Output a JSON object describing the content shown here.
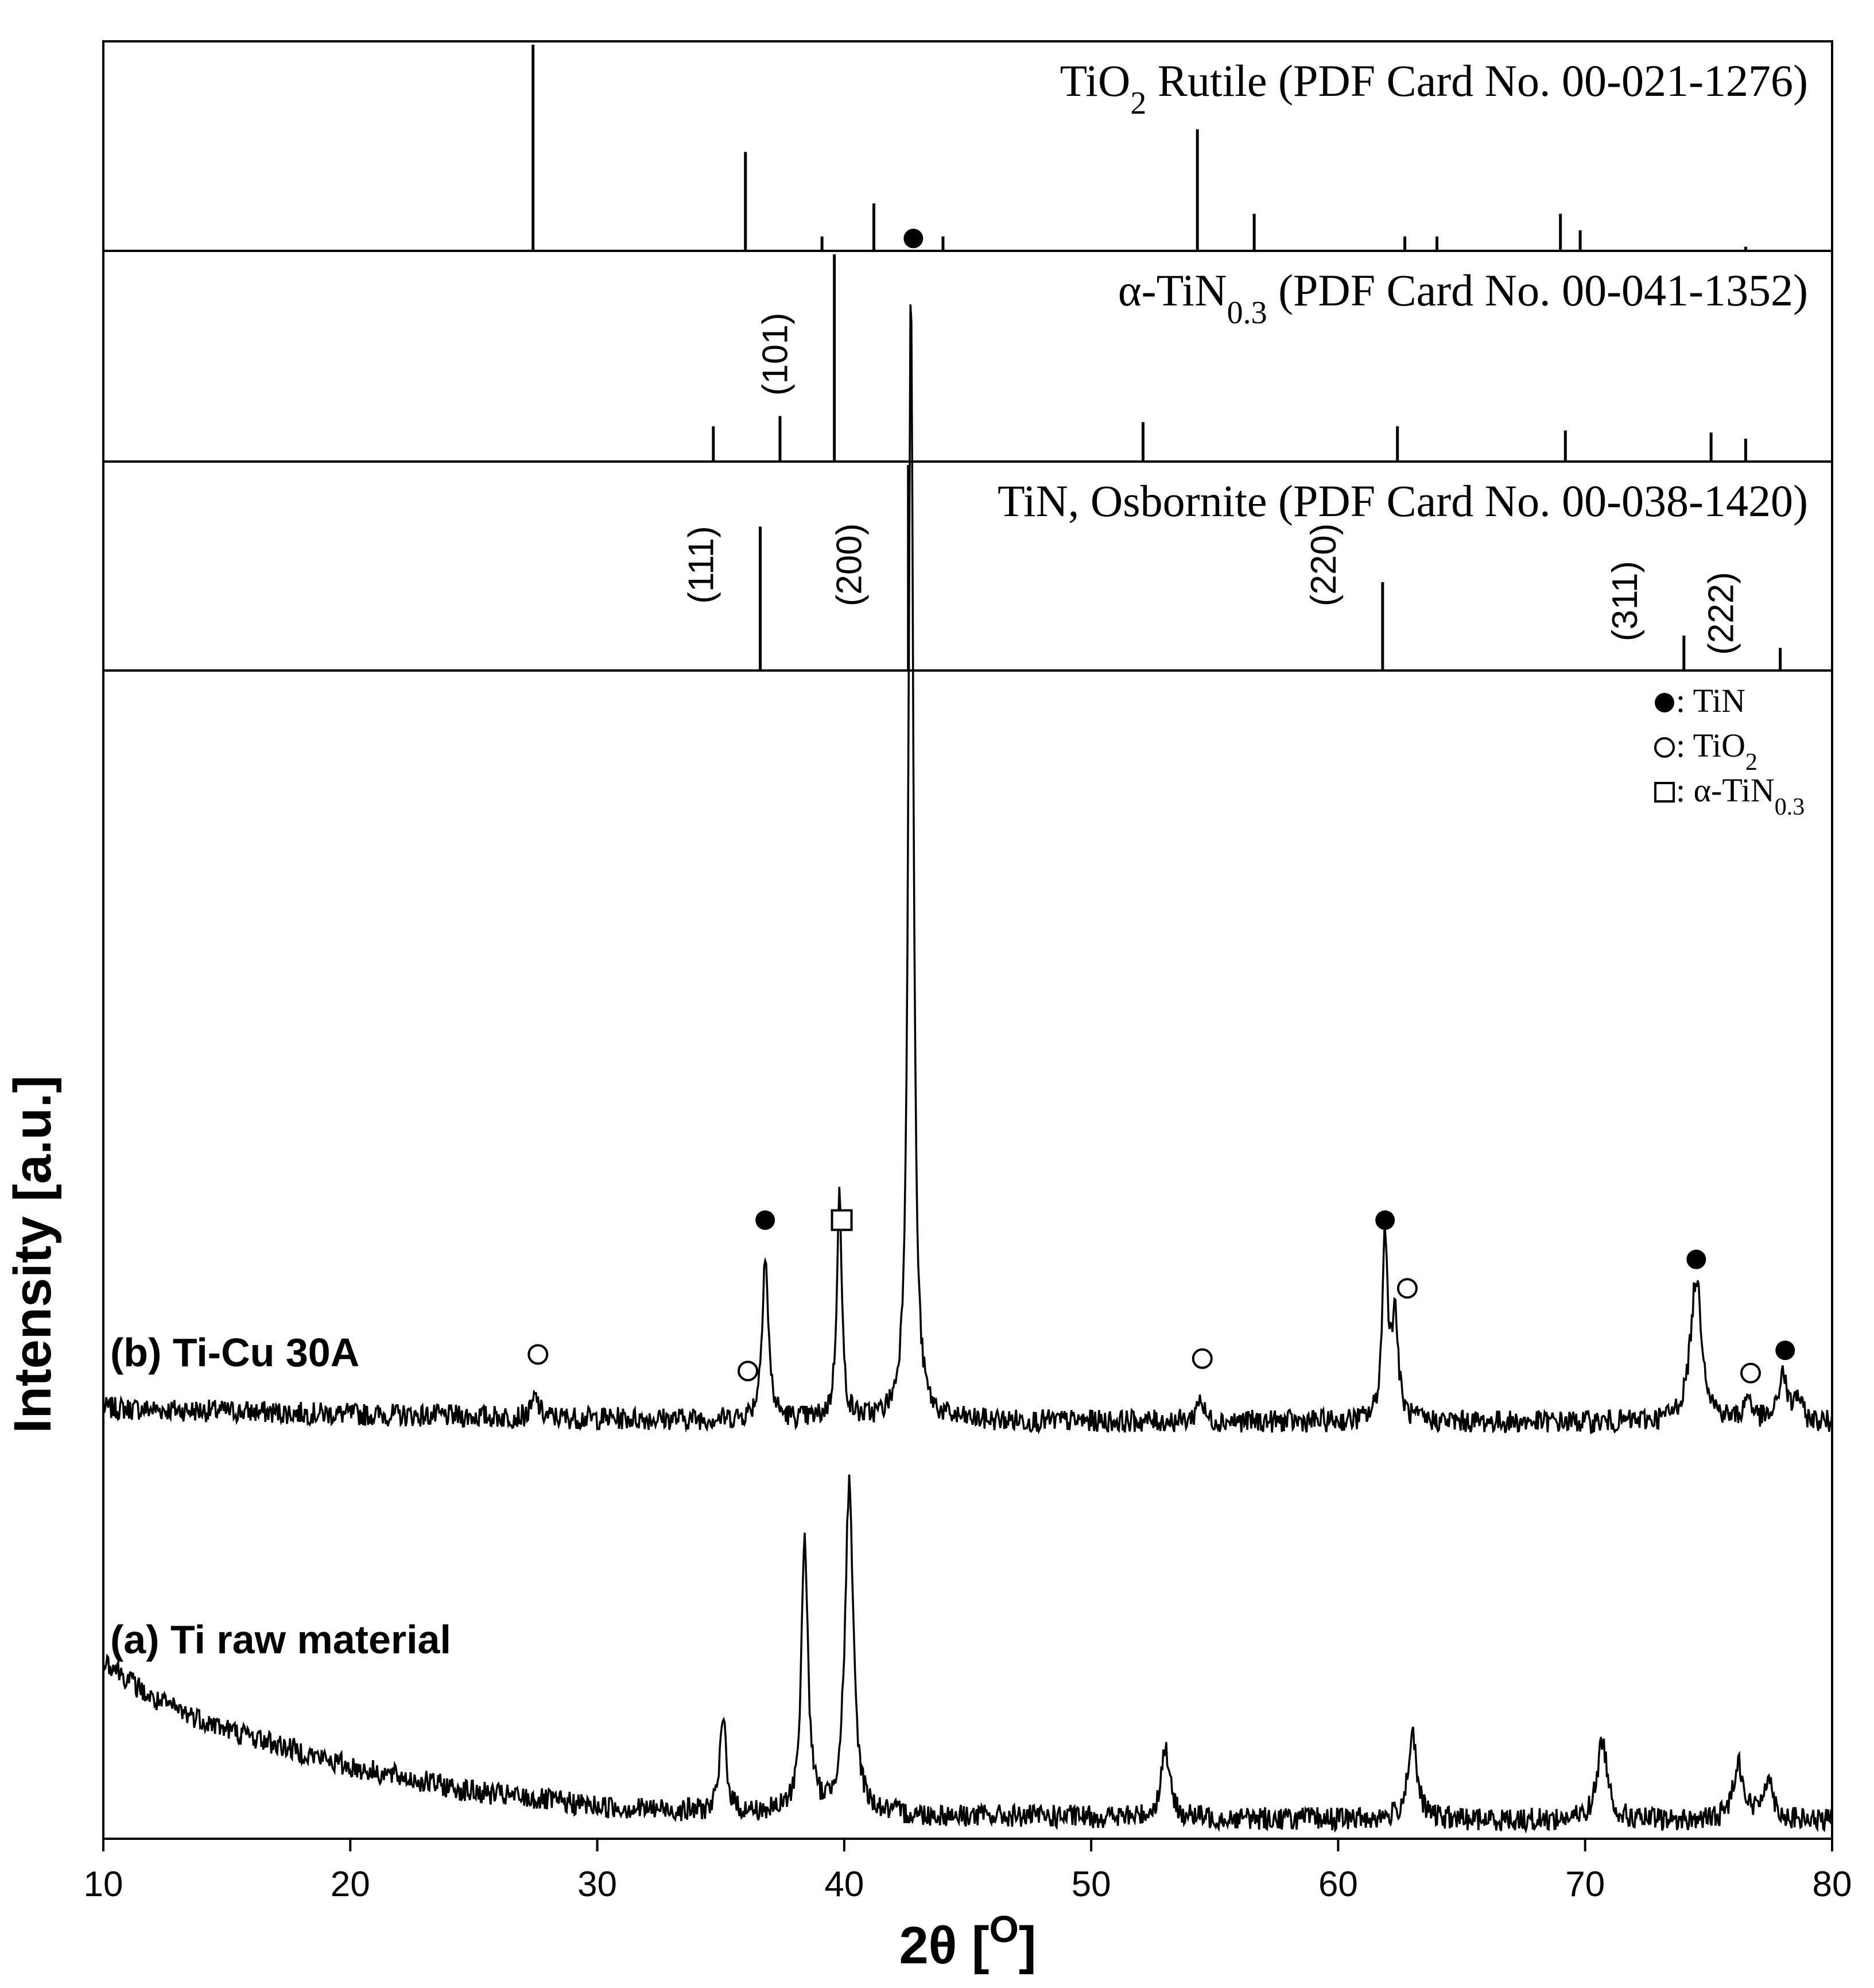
{
  "chart_data": {
    "type": "line",
    "xlabel": "2θ [",
    "xlabel_unit": "O",
    "xlabel_close": "]",
    "ylabel": "Intensity [a.u.]",
    "xlim": [
      10,
      80
    ],
    "xticks": [
      10,
      20,
      30,
      40,
      50,
      60,
      70,
      80
    ],
    "grid": false,
    "reference_panels": [
      {
        "name_parts": [
          "TiO",
          "2",
          " Rutile (PDF Card No. 00-021-1276)"
        ],
        "sticks": [
          {
            "x": 27.4,
            "h": 100
          },
          {
            "x": 36.0,
            "h": 48
          },
          {
            "x": 39.1,
            "h": 7
          },
          {
            "x": 41.2,
            "h": 23
          },
          {
            "x": 44.0,
            "h": 7
          },
          {
            "x": 54.3,
            "h": 59
          },
          {
            "x": 56.6,
            "h": 18
          },
          {
            "x": 62.7,
            "h": 7
          },
          {
            "x": 64.0,
            "h": 7
          },
          {
            "x": 69.0,
            "h": 18
          },
          {
            "x": 69.8,
            "h": 10
          },
          {
            "x": 76.5,
            "h": 2
          }
        ],
        "hkl_labels": []
      },
      {
        "name_parts": [
          "α-TiN",
          "0.3",
          " (PDF Card No. 00-041-1352)"
        ],
        "sticks": [
          {
            "x": 34.7,
            "h": 17
          },
          {
            "x": 37.4,
            "h": 22
          },
          {
            "x": 39.6,
            "h": 100
          },
          {
            "x": 52.1,
            "h": 19
          },
          {
            "x": 62.4,
            "h": 17
          },
          {
            "x": 69.2,
            "h": 15
          },
          {
            "x": 75.1,
            "h": 14
          },
          {
            "x": 76.5,
            "h": 11
          }
        ],
        "hkl_labels": [
          {
            "text": "(101)",
            "x": 39.6
          }
        ]
      },
      {
        "name_parts": [
          "TiN, Osbornite (PDF Card No. 00-038-1420)"
        ],
        "sticks": [
          {
            "x": 36.6,
            "h": 70
          },
          {
            "x": 42.6,
            "h": 100
          },
          {
            "x": 61.8,
            "h": 43
          },
          {
            "x": 74.0,
            "h": 17
          },
          {
            "x": 77.9,
            "h": 11
          }
        ],
        "hkl_labels": [
          {
            "text": "(111)",
            "x": 36.6
          },
          {
            "text": "(200)",
            "x": 42.6
          },
          {
            "text": "(220)",
            "x": 61.8
          },
          {
            "text": "(311)",
            "x": 74.0
          },
          {
            "text": "(222)",
            "x": 77.9
          }
        ]
      }
    ],
    "series": [
      {
        "name": "(b) Ti-Cu 30A",
        "baseline_x": [
          10,
          20,
          30,
          40,
          50,
          60,
          70,
          80
        ],
        "baseline_y": [
          1.0,
          0.85,
          0.75,
          0.7,
          0.68,
          0.67,
          0.66,
          0.65
        ],
        "peaks": [
          {
            "x": 27.5,
            "h": 0.5,
            "w": 0.15
          },
          {
            "x": 36.8,
            "h": 4.0,
            "w": 0.15
          },
          {
            "x": 39.8,
            "h": 5.5,
            "w": 0.12
          },
          {
            "x": 42.7,
            "h": 27.5,
            "w": 0.12
          },
          {
            "x": 54.4,
            "h": 0.6,
            "w": 0.15
          },
          {
            "x": 61.9,
            "h": 4.5,
            "w": 0.13
          },
          {
            "x": 62.3,
            "h": 2.5,
            "w": 0.15
          },
          {
            "x": 74.5,
            "h": 3.5,
            "w": 0.28
          },
          {
            "x": 76.6,
            "h": 0.6,
            "w": 0.18
          },
          {
            "x": 78.0,
            "h": 1.2,
            "w": 0.18
          },
          {
            "x": 78.6,
            "h": 0.6,
            "w": 0.18
          }
        ],
        "markers": [
          {
            "symbol": "open-circle",
            "x": 27.6,
            "y": 2.3
          },
          {
            "symbol": "open-circle",
            "x": 36.1,
            "y": 1.9
          },
          {
            "symbol": "filled-circle",
            "x": 36.8,
            "y": 5.55
          },
          {
            "symbol": "open-square",
            "x": 39.9,
            "y": 5.55
          },
          {
            "symbol": "filled-circle",
            "x": 42.8,
            "y": 29.3
          },
          {
            "symbol": "open-circle",
            "x": 54.5,
            "y": 2.2
          },
          {
            "symbol": "filled-circle",
            "x": 61.9,
            "y": 5.55
          },
          {
            "symbol": "open-circle",
            "x": 62.8,
            "y": 3.9
          },
          {
            "symbol": "filled-circle",
            "x": 74.5,
            "y": 4.6
          },
          {
            "symbol": "open-circle",
            "x": 76.7,
            "y": 1.85
          },
          {
            "symbol": "filled-circle",
            "x": 78.1,
            "y": 2.4
          }
        ]
      },
      {
        "name": "(a) Ti raw material",
        "baseline_x": [
          10,
          12,
          15,
          20,
          25,
          30,
          35,
          40,
          50,
          60,
          70,
          80
        ],
        "baseline_y": [
          4.0,
          3.0,
          2.3,
          1.4,
          0.8,
          0.45,
          0.3,
          0.25,
          0.2,
          0.15,
          0.12,
          0.1
        ],
        "peaks": [
          {
            "x": 35.1,
            "h": 2.3,
            "w": 0.15
          },
          {
            "x": 38.4,
            "h": 6.5,
            "w": 0.16
          },
          {
            "x": 40.2,
            "h": 7.8,
            "w": 0.2
          },
          {
            "x": 53.0,
            "h": 1.7,
            "w": 0.2
          },
          {
            "x": 63.0,
            "h": 2.0,
            "w": 0.22
          },
          {
            "x": 70.7,
            "h": 1.9,
            "w": 0.25
          },
          {
            "x": 76.2,
            "h": 1.4,
            "w": 0.25
          },
          {
            "x": 77.4,
            "h": 1.0,
            "w": 0.25
          }
        ],
        "markers": []
      }
    ],
    "legend": [
      {
        "symbol": "filled-circle",
        "parts": [
          ": TiN"
        ]
      },
      {
        "symbol": "open-circle",
        "parts": [
          ": TiO",
          "2"
        ]
      },
      {
        "symbol": "open-square",
        "parts": [
          ": α-TiN",
          "0.3"
        ]
      }
    ],
    "legend_placement": "top-right"
  }
}
